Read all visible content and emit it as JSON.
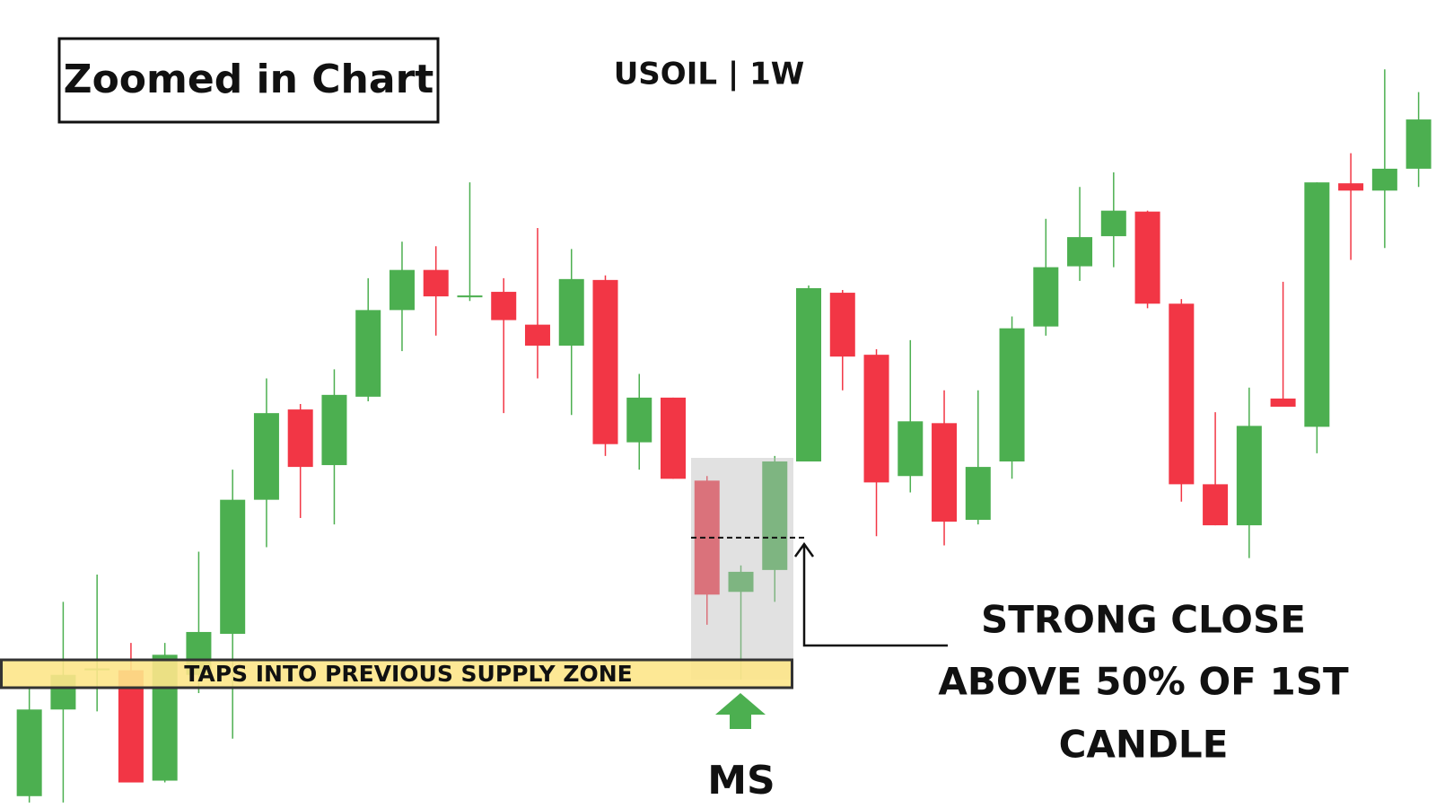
{
  "chart_data": {
    "type": "candlestick",
    "title": "Zoomed in Chart",
    "subtitle": "USOIL | 1W",
    "annotations": {
      "supply_zone": "TAPS INTO PREVIOUS SUPPLY ZONE",
      "marker": "MS",
      "note": [
        "STRONG CLOSE",
        "ABOVE 50% OF 1ST",
        "CANDLE"
      ]
    },
    "up_color": "#4caf50",
    "down_color": "#f23645",
    "ylim": [
      0,
      88.6
    ],
    "open": [
      1.3,
      10.8,
      15.1,
      15.1,
      3.0,
      14.6,
      19.1,
      33.8,
      43.7,
      37.6,
      45.1,
      54.6,
      59.0,
      56.0,
      56.6,
      53.0,
      50.7,
      57.9,
      40.1,
      45.0,
      35.9,
      23.7,
      26.1,
      38.0,
      56.5,
      49.7,
      36.4,
      42.2,
      31.6,
      38.0,
      52.8,
      59.4,
      62.7,
      65.4,
      55.3,
      35.5,
      31.0,
      44.9,
      41.8,
      68.5,
      67.7,
      70.1
    ],
    "high": [
      13.1,
      22.6,
      25.6,
      18.1,
      18.1,
      28.1,
      37.1,
      47.1,
      44.3,
      48.1,
      58.1,
      62.1,
      61.6,
      68.6,
      58.1,
      63.6,
      61.3,
      58.4,
      47.6,
      45.0,
      36.4,
      26.6,
      38.6,
      57.3,
      56.8,
      50.3,
      51.3,
      45.8,
      45.8,
      53.9,
      64.6,
      68.1,
      69.7,
      65.5,
      55.8,
      43.4,
      46.1,
      57.7,
      68.6,
      71.8,
      81.0,
      78.5
    ],
    "low": [
      0.6,
      0.6,
      10.6,
      2.8,
      2.8,
      12.6,
      7.6,
      28.6,
      31.8,
      31.1,
      44.6,
      50.1,
      51.8,
      55.6,
      43.3,
      47.1,
      43.1,
      38.6,
      37.1,
      36.1,
      20.1,
      14.1,
      22.6,
      38.0,
      45.8,
      29.8,
      34.6,
      28.8,
      31.1,
      36.1,
      51.8,
      57.8,
      59.3,
      54.8,
      33.6,
      31.0,
      27.4,
      44.0,
      38.9,
      60.1,
      61.4,
      68.1
    ],
    "close": [
      10.8,
      14.6,
      15.3,
      2.8,
      16.8,
      19.3,
      33.8,
      43.3,
      37.4,
      45.3,
      54.6,
      59.0,
      56.1,
      56.2,
      53.5,
      50.7,
      58.0,
      39.9,
      45.0,
      36.1,
      23.4,
      25.9,
      38.0,
      57.0,
      49.5,
      35.7,
      42.4,
      31.4,
      37.4,
      52.6,
      59.3,
      62.6,
      65.5,
      55.3,
      35.5,
      31.0,
      41.9,
      44.0,
      68.6,
      67.7,
      70.1,
      75.5
    ]
  }
}
